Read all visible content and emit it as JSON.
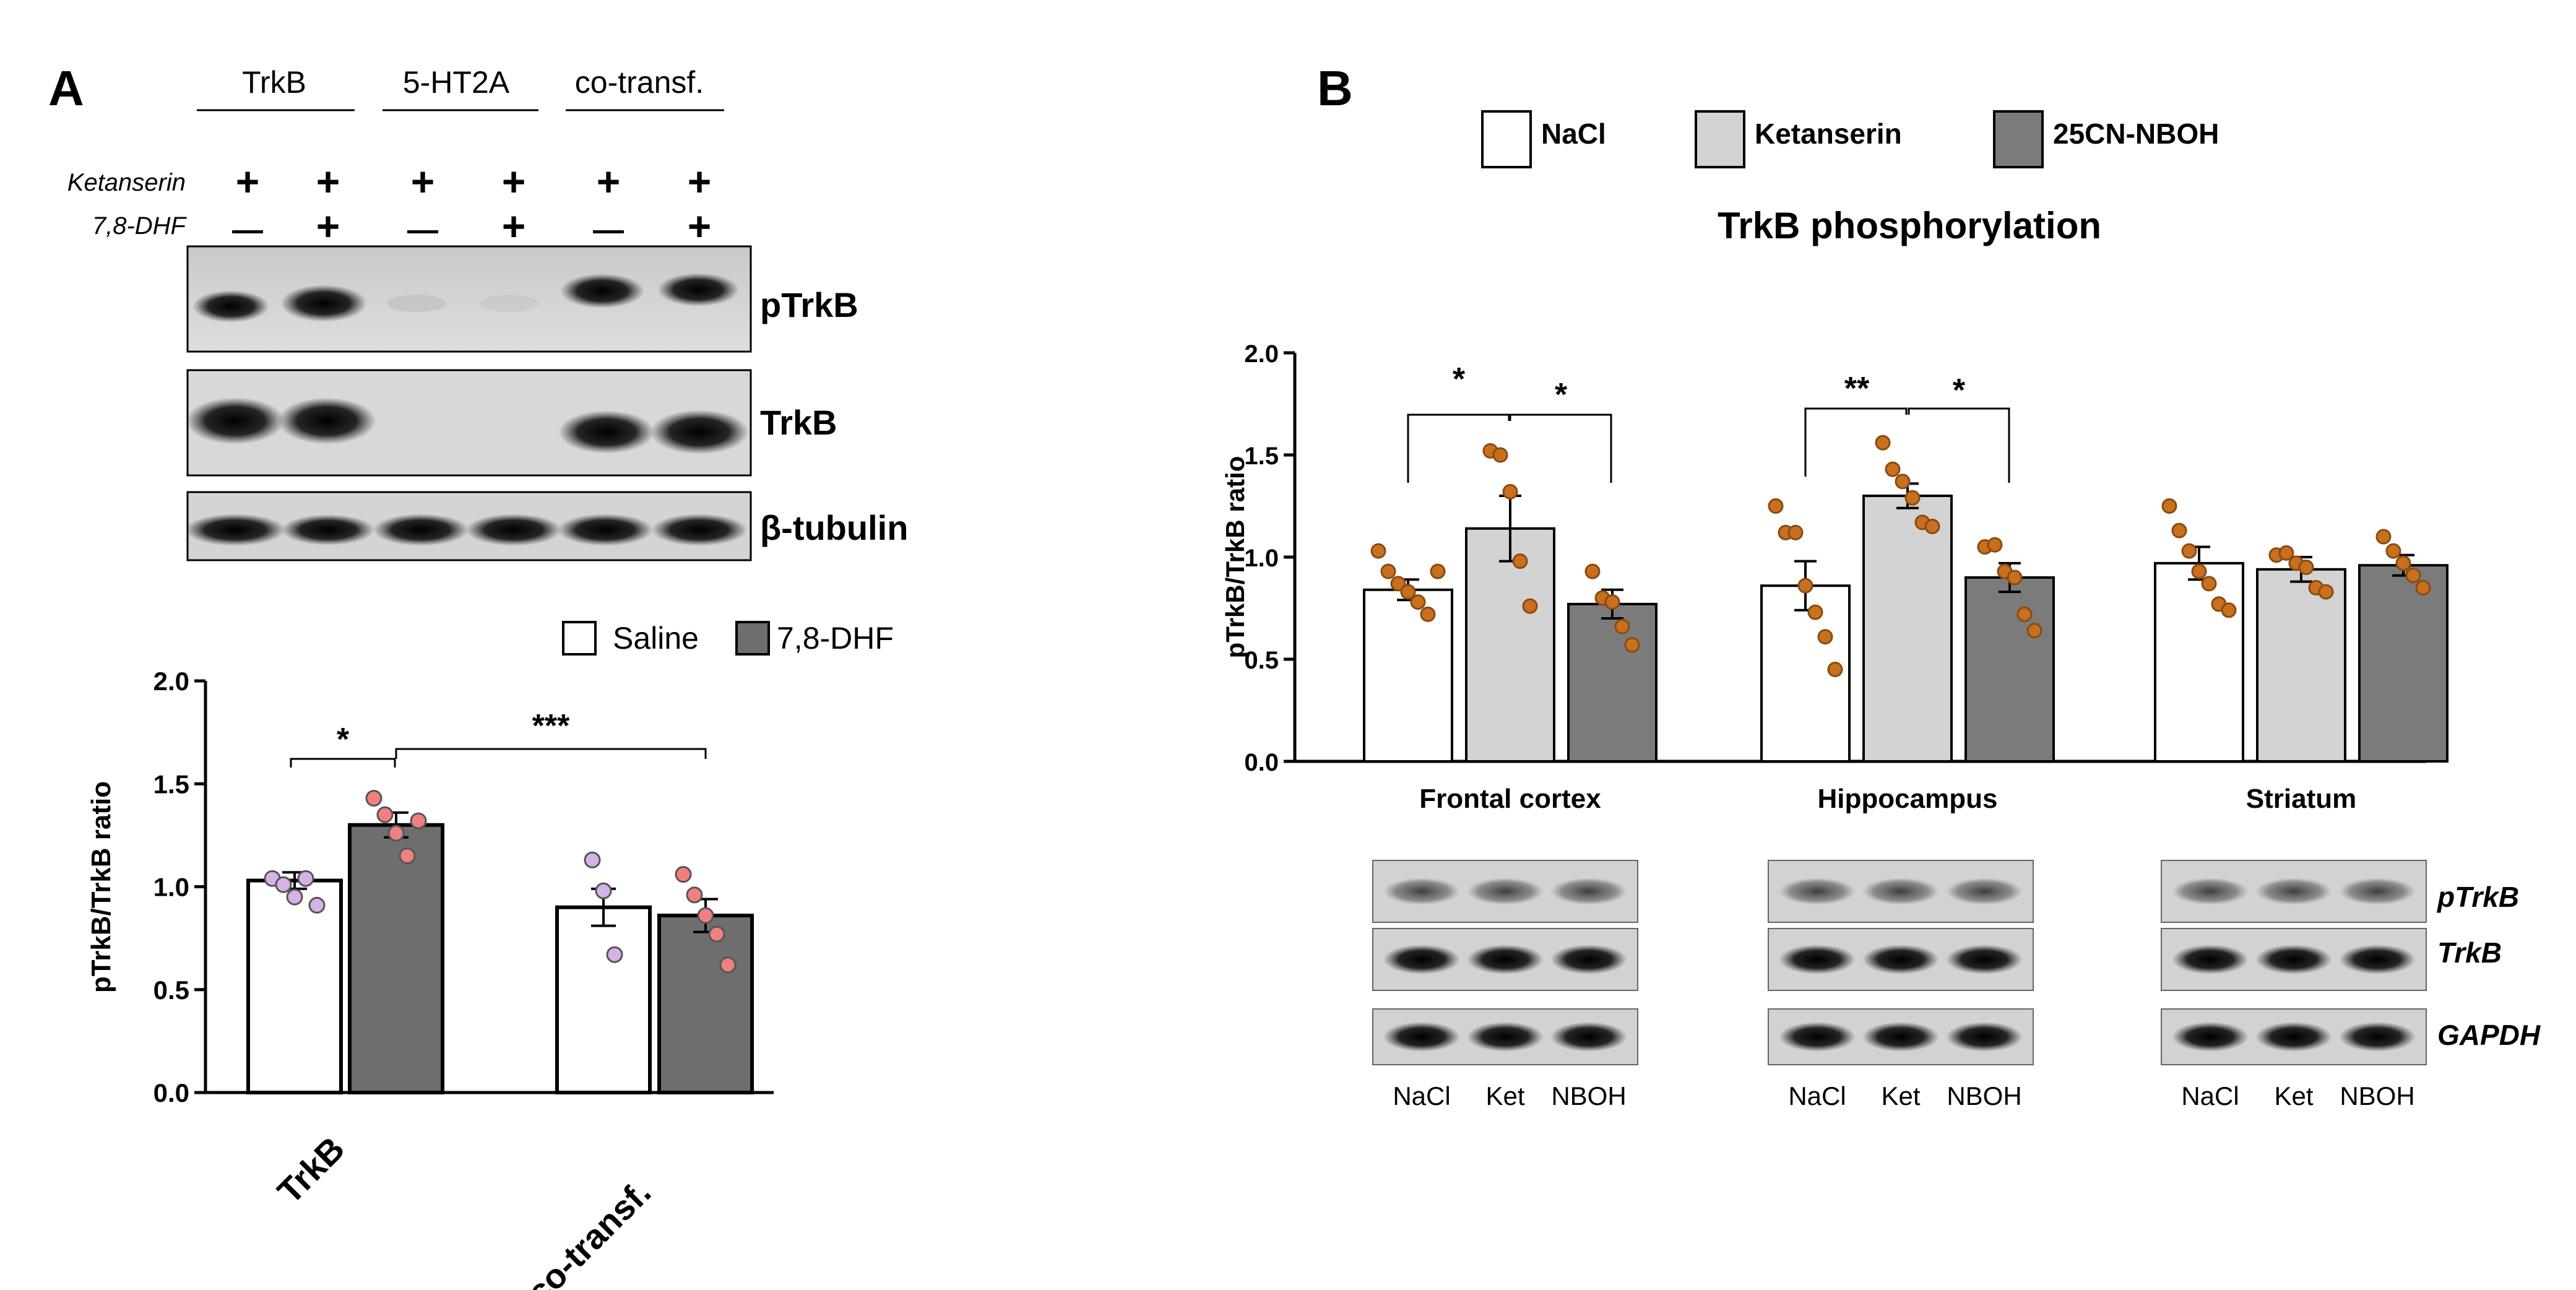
{
  "panel_a": {
    "label": "A",
    "group_headers": [
      "TrkB",
      "5-HT2A",
      "co-transf."
    ],
    "row_labels": [
      "Ketanserin",
      "7,8-DHF"
    ],
    "ketanserin_signs": [
      "+",
      "+",
      "+",
      "+",
      "+",
      "+"
    ],
    "dhf_signs": [
      "—",
      "+",
      "—",
      "+",
      "—",
      "+"
    ],
    "blot_labels": [
      "pTrkB",
      "TrkB",
      "β-tubulin"
    ]
  },
  "panel_b": {
    "label": "B",
    "blot_labels": [
      "pTrkB",
      "TrkB",
      "GAPDH"
    ],
    "lane_labels": [
      "NaCl",
      "Ket",
      "NBOH"
    ]
  },
  "colors": {
    "white_bar": "#ffffff",
    "saline_bar": "#ffffff",
    "dhf_bar": "#6e6e6e",
    "ketanserin_bar": "#d3d3d3",
    "nboh_bar": "#7b7b7b",
    "saline_dot": "#d6b3e6",
    "dhf_dot": "#f08080",
    "b_dot": "#c8701e"
  },
  "chart_data": [
    {
      "type": "bar",
      "title": "",
      "categories": [
        "TrkB",
        "co-transf."
      ],
      "legend": [
        "Saline",
        "7,8-DHF"
      ],
      "series": [
        {
          "name": "Saline",
          "values": [
            1.03,
            0.9
          ],
          "sem": [
            0.04,
            0.09
          ],
          "points": [
            [
              1.04,
              1.01,
              0.95,
              1.04,
              0.91
            ],
            [
              1.13,
              0.98,
              0.67
            ]
          ]
        },
        {
          "name": "7,8-DHF",
          "values": [
            1.3,
            0.86
          ],
          "sem": [
            0.06,
            0.08
          ],
          "points": [
            [
              1.43,
              1.35,
              1.26,
              1.15,
              1.32
            ],
            [
              1.06,
              0.96,
              0.86,
              0.77,
              0.62
            ]
          ]
        }
      ],
      "ylabel": "pTrkB/TrkB ratio",
      "ylim": [
        0,
        2.0
      ],
      "yticks": [
        "0.0",
        "0.5",
        "1.0",
        "1.5",
        "2.0"
      ],
      "significance": [
        "*",
        "***"
      ]
    },
    {
      "type": "bar",
      "title": "TrkB phosphorylation",
      "categories": [
        "Frontal cortex",
        "Hippocampus",
        "Striatum"
      ],
      "legend": [
        "NaCl",
        "Ketanserin",
        "25CN-NBOH"
      ],
      "series": [
        {
          "name": "NaCl",
          "values": [
            0.84,
            0.86,
            0.97
          ],
          "sem": [
            0.05,
            0.12,
            0.08
          ],
          "points": [
            [
              1.03,
              0.93,
              0.87,
              0.83,
              0.78,
              0.72,
              0.93
            ],
            [
              1.25,
              1.12,
              1.12,
              0.86,
              0.73,
              0.61,
              0.45
            ],
            [
              1.25,
              1.13,
              1.03,
              0.93,
              0.87,
              0.77,
              0.74
            ]
          ]
        },
        {
          "name": "Ketanserin",
          "values": [
            1.14,
            1.3,
            0.94
          ],
          "sem": [
            0.16,
            0.06,
            0.06
          ],
          "points": [
            [
              1.52,
              1.5,
              1.32,
              0.98,
              0.76
            ],
            [
              1.56,
              1.43,
              1.37,
              1.29,
              1.17,
              1.15
            ],
            [
              1.01,
              1.02,
              0.97,
              0.95,
              0.85,
              0.83
            ]
          ]
        },
        {
          "name": "25CN-NBOH",
          "values": [
            0.77,
            0.9,
            0.96
          ],
          "sem": [
            0.07,
            0.07,
            0.05
          ],
          "points": [
            [
              0.93,
              0.8,
              0.78,
              0.66,
              0.57
            ],
            [
              1.05,
              1.06,
              0.93,
              0.9,
              0.72,
              0.64
            ],
            [
              1.1,
              1.03,
              0.97,
              0.91,
              0.85
            ]
          ]
        }
      ],
      "ylabel": "pTrkB/TrkB ratio",
      "ylim": [
        0,
        2.0
      ],
      "yticks": [
        "0.0",
        "0.5",
        "1.0",
        "1.5",
        "2.0"
      ],
      "significance": [
        "*",
        "*",
        "**",
        "*"
      ]
    }
  ]
}
